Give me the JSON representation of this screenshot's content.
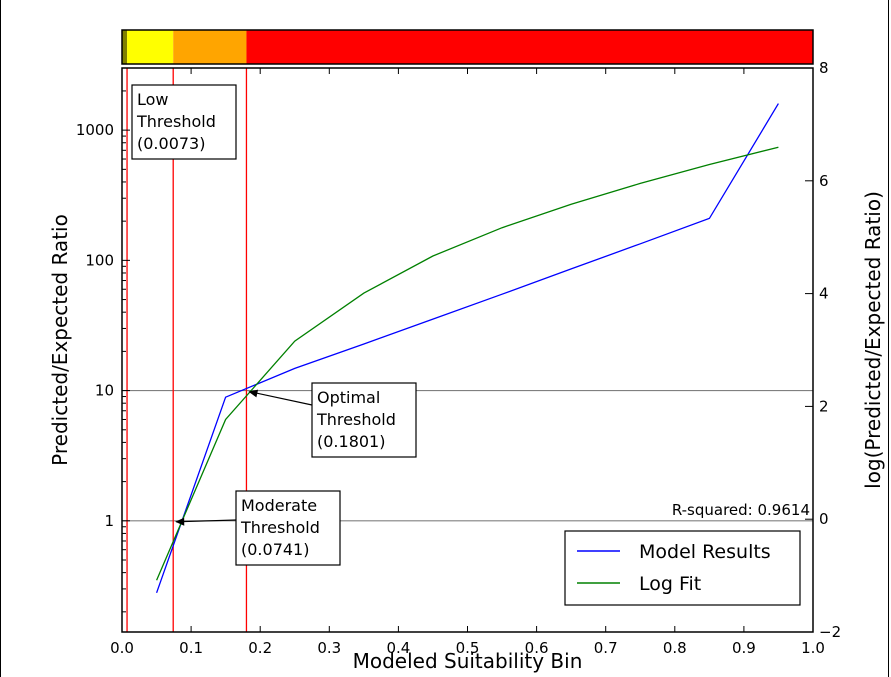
{
  "chart_data": {
    "type": "line",
    "xlabel": "Modeled Suitability Bin",
    "ylabel": "Predicted/Expected Ratio",
    "ylabel_right": "log(Predicted/Expected Ratio)",
    "xlim": [
      0.0,
      1.0
    ],
    "ylim": [
      0.14,
      3000
    ],
    "yscale": "log",
    "ylim_right": [
      -2,
      8
    ],
    "x_ticks": [
      "0.0",
      "0.1",
      "0.2",
      "0.3",
      "0.4",
      "0.5",
      "0.6",
      "0.7",
      "0.8",
      "0.9",
      "1.0"
    ],
    "y_ticks": [
      {
        "value": 1,
        "label": "1"
      },
      {
        "value": 10,
        "label": "10"
      },
      {
        "value": 100,
        "label": "100"
      },
      {
        "value": 1000,
        "label": "1000"
      }
    ],
    "y_ticks_right": [
      {
        "value": -2,
        "label": "−2"
      },
      {
        "value": 0,
        "label": "0"
      },
      {
        "value": 2,
        "label": "2"
      },
      {
        "value": 4,
        "label": "4"
      },
      {
        "value": 6,
        "label": "6"
      },
      {
        "value": 8,
        "label": "8"
      }
    ],
    "series": [
      {
        "name": "Model Results",
        "color": "#0000ff",
        "x": [
          0.05,
          0.15,
          0.25,
          0.35,
          0.45,
          0.55,
          0.65,
          0.75,
          0.85,
          0.95
        ],
        "y": [
          0.28,
          8.9,
          14.8,
          22.8,
          35.4,
          55.0,
          86.0,
          134.0,
          210.0,
          1600.0
        ]
      },
      {
        "name": "Log Fit",
        "color": "#008000",
        "x": [
          0.05,
          0.15,
          0.25,
          0.35,
          0.45,
          0.55,
          0.65,
          0.75,
          0.85,
          0.95
        ],
        "y": [
          0.35,
          6.0,
          24.0,
          56.0,
          108.0,
          178.0,
          270.0,
          390.0,
          545.0,
          740.0
        ]
      }
    ],
    "reference_lines": [
      {
        "axis": "y",
        "value": 1,
        "color": "#808080"
      },
      {
        "axis": "y",
        "value": 10,
        "color": "#808080"
      }
    ],
    "thresholds": [
      {
        "value": 0.0073,
        "color": "#ff0000"
      },
      {
        "value": 0.0741,
        "color": "#ff0000"
      },
      {
        "value": 0.1801,
        "color": "#ff0000"
      }
    ],
    "annotations": [
      {
        "id": "low",
        "lines": [
          "Low",
          "Threshold",
          "(0.0073)"
        ]
      },
      {
        "id": "moderate",
        "lines": [
          "Moderate",
          "Threshold",
          "(0.0741)"
        ],
        "point": [
          0.0741,
          1
        ]
      },
      {
        "id": "optimal",
        "lines": [
          "Optimal",
          "Threshold",
          "(0.1801)"
        ],
        "point": [
          0.1801,
          10
        ]
      }
    ],
    "rsquared_label": "R-squared: 0.9614",
    "legend_position": "lower right",
    "color_bar": [
      {
        "from": 0.0,
        "to": 0.0073,
        "color": "#808000"
      },
      {
        "from": 0.0073,
        "to": 0.0741,
        "color": "#ffff00"
      },
      {
        "from": 0.0741,
        "to": 0.1801,
        "color": "#ffa500"
      },
      {
        "from": 0.1801,
        "to": 1.0,
        "color": "#ff0000"
      }
    ]
  }
}
